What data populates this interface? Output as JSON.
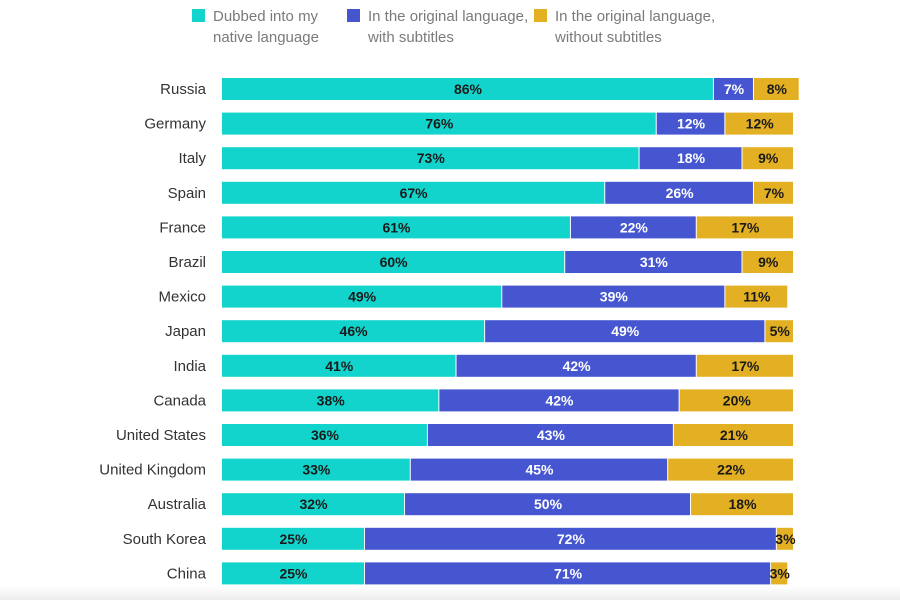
{
  "chart_data": {
    "type": "bar",
    "orientation": "horizontal",
    "stacked": true,
    "title": "",
    "xlabel": "",
    "ylabel": "",
    "xlim": [
      0,
      100
    ],
    "legend_position": "top",
    "categories": [
      "Russia",
      "Germany",
      "Italy",
      "Spain",
      "France",
      "Brazil",
      "Mexico",
      "Japan",
      "India",
      "Canada",
      "United States",
      "United Kingdom",
      "Australia",
      "South Korea",
      "China"
    ],
    "series": [
      {
        "name": "Dubbed into my\nnative language",
        "color": "#12d4cd",
        "label_color": "#1a1a1a",
        "values": [
          86,
          76,
          73,
          67,
          61,
          60,
          49,
          46,
          41,
          38,
          36,
          33,
          32,
          25,
          25
        ]
      },
      {
        "name": "In the original language,\nwith subtitles",
        "color": "#4656d1",
        "label_color": "#ffffff",
        "values": [
          7,
          12,
          18,
          26,
          22,
          31,
          39,
          49,
          42,
          42,
          43,
          45,
          50,
          72,
          71
        ]
      },
      {
        "name": "In the original language,\nwithout subtitles",
        "color": "#e3b024",
        "label_color": "#1a1a1a",
        "values": [
          8,
          12,
          9,
          7,
          17,
          9,
          11,
          5,
          17,
          20,
          21,
          22,
          18,
          3,
          3
        ]
      }
    ],
    "value_suffix": "%"
  }
}
